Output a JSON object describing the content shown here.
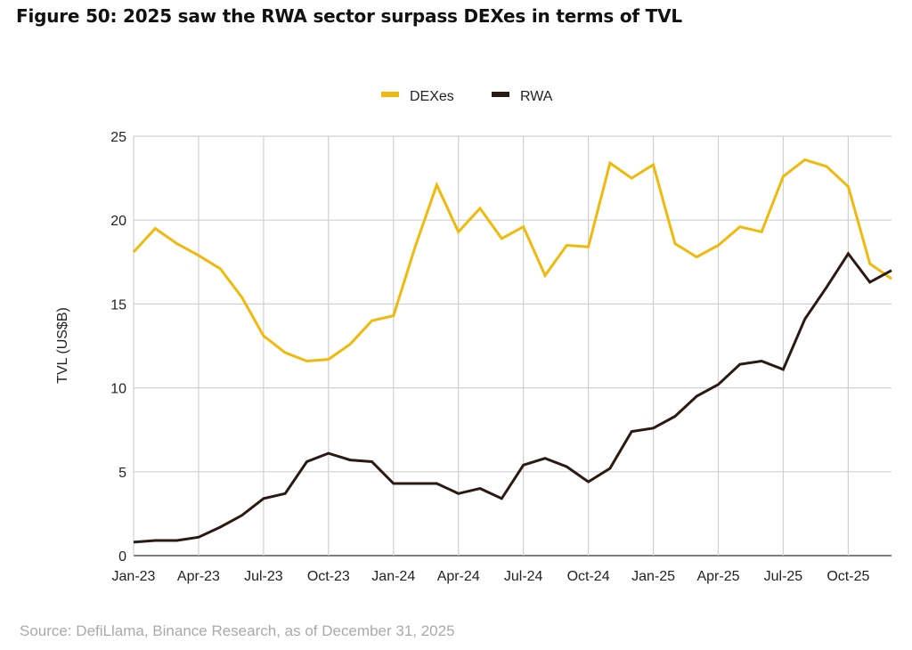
{
  "title": "Figure 50: 2025 saw the RWA sector surpass DEXes in terms of TVL",
  "source": "Source: DefiLlama, Binance Research, as of December 31, 2025",
  "chart_data": {
    "type": "line",
    "title": "Figure 50: 2025 saw the RWA sector surpass DEXes in terms of TVL",
    "xlabel": "",
    "ylabel": "TVL (US$B)",
    "ylim": [
      0,
      25
    ],
    "yticks": [
      "0",
      "5",
      "10",
      "15",
      "20",
      "25"
    ],
    "xticks": [
      "Jan-23",
      "Apr-23",
      "Jul-23",
      "Oct-23",
      "Jan-24",
      "Apr-24",
      "Jul-24",
      "Oct-24",
      "Jan-25",
      "Apr-25",
      "Jul-25",
      "Oct-25"
    ],
    "grid": true,
    "legend_position": "top-center",
    "x": [
      "Jan-23",
      "Feb-23",
      "Mar-23",
      "Apr-23",
      "May-23",
      "Jun-23",
      "Jul-23",
      "Aug-23",
      "Sep-23",
      "Oct-23",
      "Nov-23",
      "Dec-23",
      "Jan-24",
      "Feb-24",
      "Mar-24",
      "Apr-24",
      "May-24",
      "Jun-24",
      "Jul-24",
      "Aug-24",
      "Sep-24",
      "Oct-24",
      "Nov-24",
      "Dec-24",
      "Jan-25",
      "Feb-25",
      "Mar-25",
      "Apr-25",
      "May-25",
      "Jun-25",
      "Jul-25",
      "Aug-25",
      "Sep-25",
      "Oct-25",
      "Nov-25",
      "Dec-25"
    ],
    "series": [
      {
        "name": "DEXes",
        "color": "#f0b90b",
        "values": [
          18.1,
          19.5,
          18.6,
          17.9,
          17.1,
          15.4,
          13.1,
          12.1,
          11.6,
          11.7,
          12.6,
          14.0,
          14.3,
          18.4,
          22.1,
          19.3,
          20.7,
          18.9,
          19.6,
          16.7,
          18.5,
          18.4,
          23.4,
          22.5,
          23.3,
          18.6,
          17.8,
          18.5,
          19.6,
          19.3,
          22.6,
          23.6,
          23.2,
          22.0,
          17.4,
          16.5
        ]
      },
      {
        "name": "RWA",
        "color": "#2b1a12",
        "values": [
          0.8,
          0.9,
          0.9,
          1.1,
          1.7,
          2.4,
          3.4,
          3.7,
          5.6,
          6.1,
          5.7,
          5.6,
          4.3,
          4.3,
          4.3,
          3.7,
          4.0,
          3.4,
          5.4,
          5.8,
          5.3,
          4.4,
          5.2,
          7.4,
          7.6,
          8.3,
          9.5,
          10.2,
          11.4,
          11.6,
          11.1,
          14.1,
          16.0,
          18.0,
          16.3,
          17.0
        ]
      }
    ]
  }
}
